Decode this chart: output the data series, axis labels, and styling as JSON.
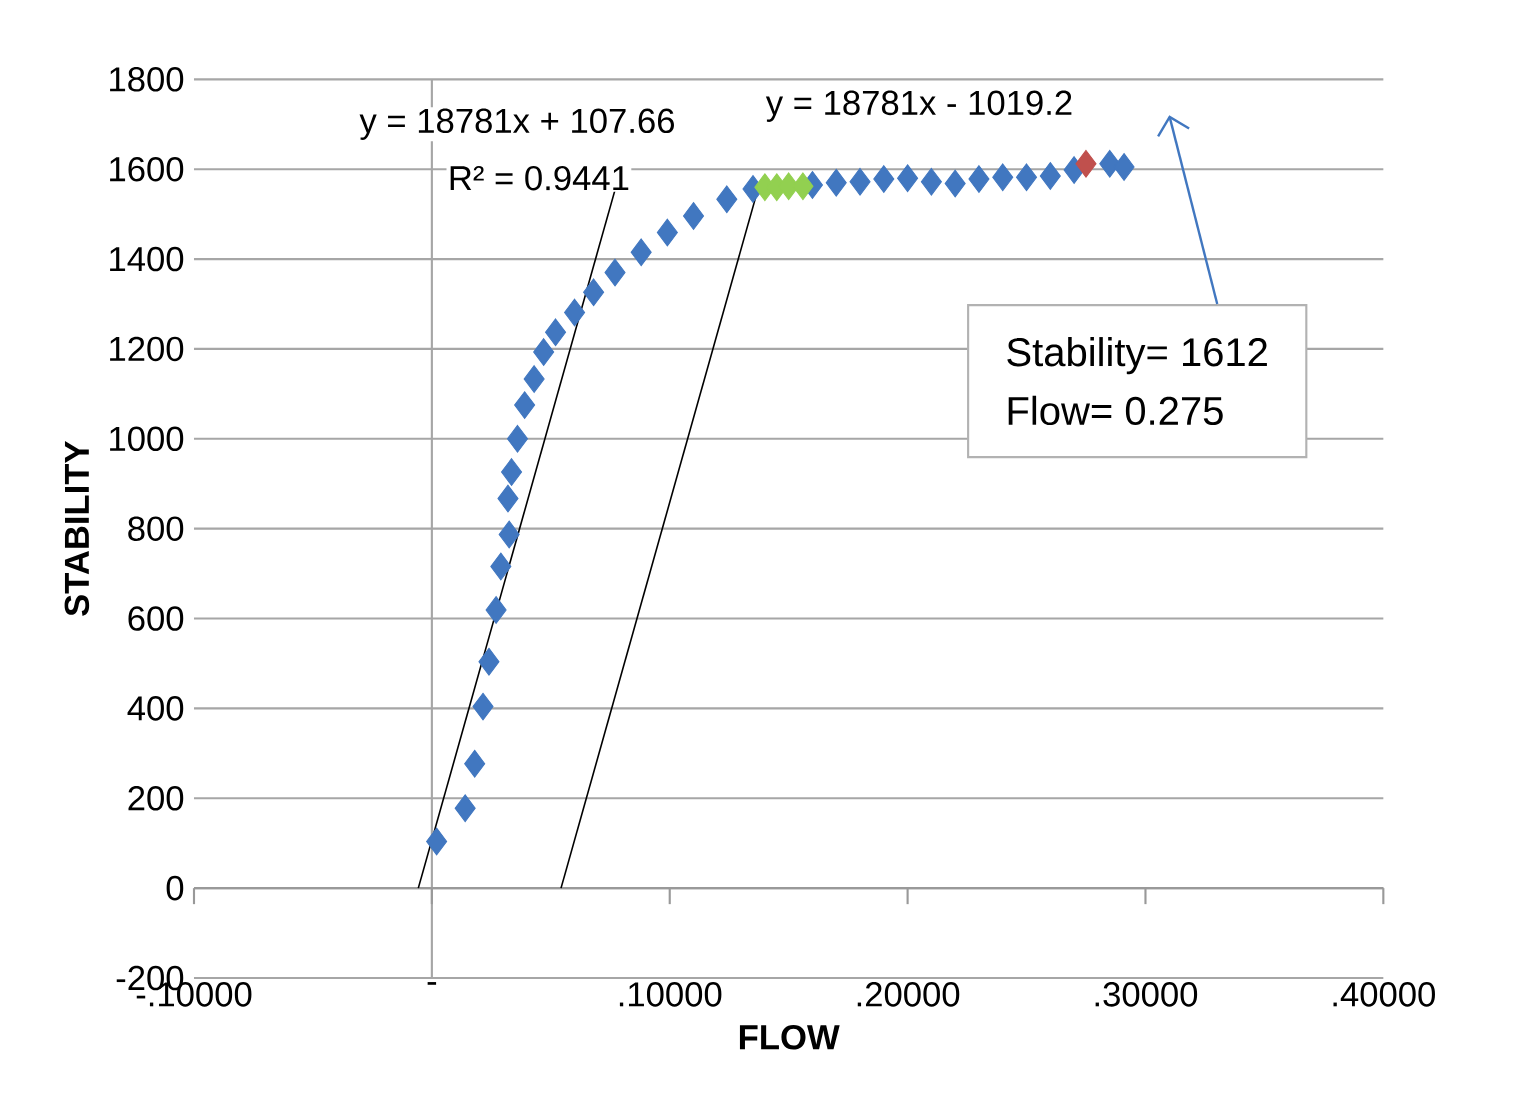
{
  "chart_data": {
    "type": "scatter",
    "xlabel": "FLOW",
    "ylabel": "STABILITY",
    "xlim": [
      -0.1,
      0.4
    ],
    "ylim": [
      -200,
      1800
    ],
    "xticks": [
      {
        "value": -0.1,
        "label": "-.10000"
      },
      {
        "value": 0,
        "label": "-"
      },
      {
        "value": 0.1,
        "label": ".10000"
      },
      {
        "value": 0.2,
        "label": ".20000"
      },
      {
        "value": 0.3,
        "label": ".30000"
      },
      {
        "value": 0.4,
        "label": ".40000"
      }
    ],
    "yticks": [
      -200,
      0,
      200,
      400,
      600,
      800,
      1000,
      1200,
      1400,
      1600,
      1800
    ],
    "grid": "y",
    "marker": "diamond",
    "ref_lines": [
      {
        "axis": "x",
        "value": 0,
        "color": "#a6a6a6"
      }
    ],
    "series": [
      {
        "color": "#4177c0",
        "x": [
          0.002,
          0.014,
          0.018,
          0.0215,
          0.024,
          0.027,
          0.029,
          0.0325,
          0.032,
          0.0335,
          0.036,
          0.039,
          0.043,
          0.047,
          0.052,
          0.06,
          0.068,
          0.077,
          0.088,
          0.099,
          0.11,
          0.124,
          0.135,
          0.16,
          0.17,
          0.18,
          0.19,
          0.2,
          0.21,
          0.22,
          0.23,
          0.24,
          0.25,
          0.26,
          0.27,
          0.285,
          0.291
        ],
        "values": [
          104,
          178,
          277,
          404,
          504,
          619,
          716,
          787,
          867,
          926,
          1000,
          1075,
          1133,
          1193,
          1237,
          1281,
          1326,
          1370,
          1415,
          1459,
          1496,
          1533,
          1556,
          1565,
          1570,
          1572,
          1578,
          1580,
          1572,
          1568,
          1578,
          1582,
          1582,
          1585,
          1598,
          1612,
          1605
        ]
      },
      {
        "color": "#92d050",
        "x": [
          0.14,
          0.145,
          0.15,
          0.156
        ],
        "values": [
          1560,
          1560,
          1562,
          1562
        ]
      },
      {
        "color": "#c0504d",
        "x": [
          0.275
        ],
        "values": [
          1612
        ]
      },
      {
        "type": "line",
        "marker": "none",
        "color": "#000000",
        "x": [
          -0.0057,
          0.077
        ],
        "values": [
          0,
          1554
        ]
      },
      {
        "type": "line",
        "marker": "none",
        "color": "#000000",
        "x": [
          0.0543,
          0.137
        ],
        "values": [
          0,
          1554
        ]
      }
    ],
    "annotations": [
      "y = 18781x + 107.66",
      "R² = 0.9441",
      "y = 18781x - 1019.2",
      "Stability= 1612",
      "Flow= 0.275"
    ]
  }
}
